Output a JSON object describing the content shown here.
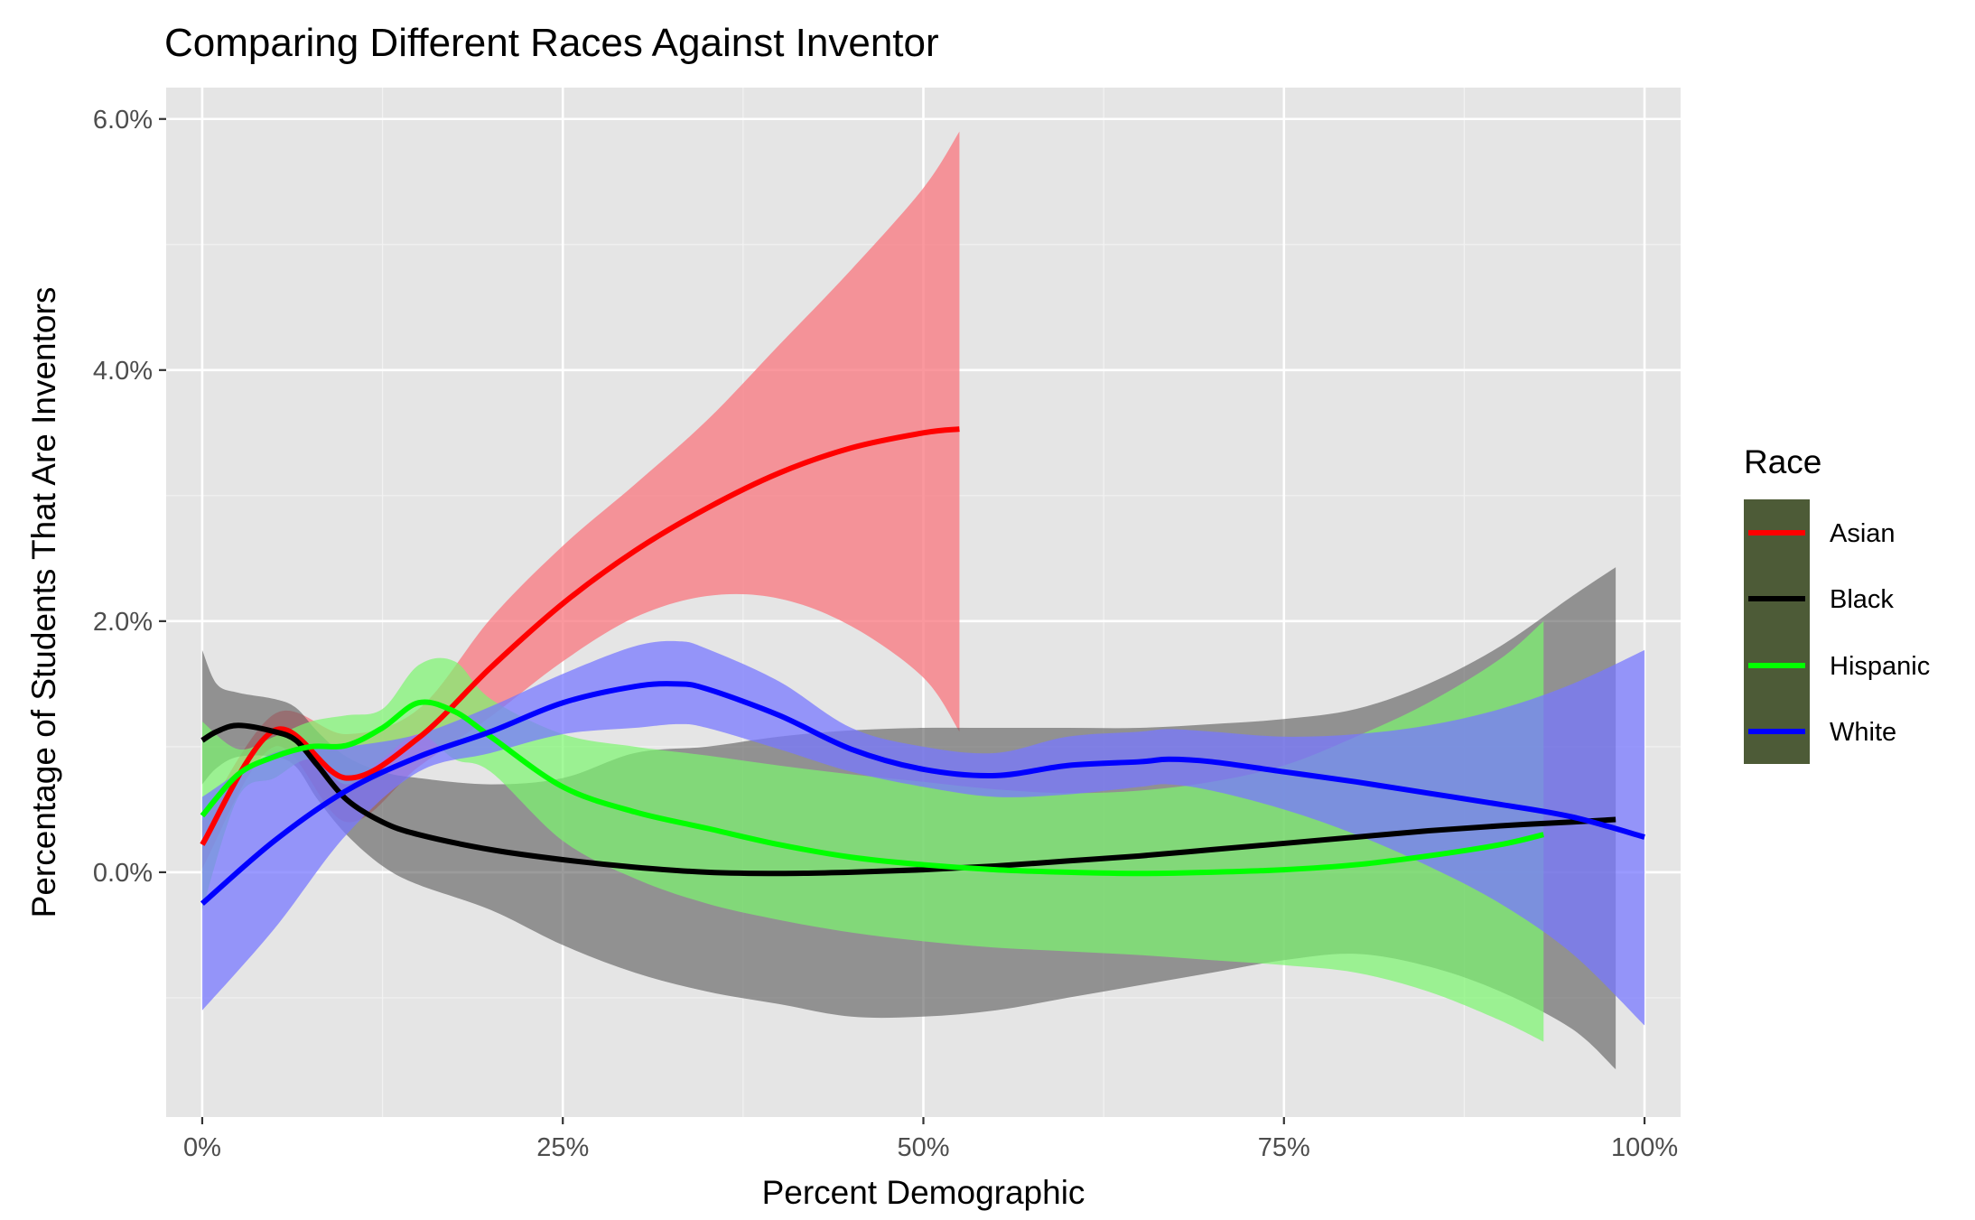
{
  "chart_data": {
    "type": "line",
    "title": "Comparing Different Races Against Inventor",
    "xlabel": "Percent Demographic",
    "ylabel": "Percentage of Students That Are Inventors",
    "xlim": [
      -0.025,
      1.025
    ],
    "ylim": [
      -0.0195,
      0.0625
    ],
    "x_ticks": [
      {
        "value": 0,
        "label": "0%"
      },
      {
        "value": 0.25,
        "label": "25%"
      },
      {
        "value": 0.5,
        "label": "50%"
      },
      {
        "value": 0.75,
        "label": "75%"
      },
      {
        "value": 1.0,
        "label": "100%"
      }
    ],
    "y_ticks": [
      {
        "value": 0.0,
        "label": "0.0%"
      },
      {
        "value": 0.02,
        "label": "2.0%"
      },
      {
        "value": 0.04,
        "label": "4.0%"
      },
      {
        "value": 0.06,
        "label": "6.0%"
      }
    ],
    "grid": true,
    "legend": {
      "title": "Race",
      "position": "right",
      "background": "#4d5b37"
    },
    "series": [
      {
        "name": "Asian",
        "color": "#ff0000",
        "ribbon_color": "#f8767d",
        "ribbon_opacity": 0.75,
        "x": [
          0.0,
          0.05,
          0.1,
          0.15,
          0.2,
          0.25,
          0.3,
          0.35,
          0.4,
          0.45,
          0.5,
          0.525
        ],
        "y": [
          0.0022,
          0.0113,
          0.0075,
          0.0107,
          0.0163,
          0.0214,
          0.0256,
          0.029,
          0.0318,
          0.0338,
          0.035,
          0.0353
        ],
        "lower": [
          0.0003,
          0.01,
          0.004,
          0.0084,
          0.0124,
          0.0168,
          0.0203,
          0.022,
          0.0218,
          0.0196,
          0.0155,
          0.0112
        ],
        "upper": [
          0.0041,
          0.0126,
          0.011,
          0.013,
          0.0202,
          0.026,
          0.0309,
          0.036,
          0.042,
          0.048,
          0.0545,
          0.059
        ]
      },
      {
        "name": "Black",
        "color": "#000000",
        "ribbon_color": "#595959",
        "ribbon_opacity": 0.6,
        "x": [
          0.0,
          0.01,
          0.025,
          0.05,
          0.065,
          0.08,
          0.1,
          0.125,
          0.15,
          0.2,
          0.25,
          0.3,
          0.35,
          0.4,
          0.45,
          0.5,
          0.55,
          0.6,
          0.65,
          0.7,
          0.75,
          0.8,
          0.85,
          0.9,
          0.95,
          0.98
        ],
        "y": [
          0.0105,
          0.0112,
          0.0117,
          0.0112,
          0.0105,
          0.0085,
          0.0058,
          0.004,
          0.003,
          0.0018,
          0.001,
          0.0004,
          0.0,
          -0.0001,
          0.0,
          0.0002,
          0.0005,
          0.0009,
          0.0013,
          0.0018,
          0.0023,
          0.0028,
          0.0033,
          0.0037,
          0.004,
          0.0042
        ],
        "lower": [
          0.007,
          0.0083,
          0.0092,
          0.0092,
          0.0084,
          0.0058,
          0.003,
          0.0005,
          -0.001,
          -0.003,
          -0.0058,
          -0.008,
          -0.0095,
          -0.0105,
          -0.0115,
          -0.0115,
          -0.011,
          -0.01,
          -0.009,
          -0.008,
          -0.007,
          -0.0065,
          -0.0075,
          -0.0095,
          -0.0125,
          -0.0157
        ],
        "upper": [
          0.0177,
          0.015,
          0.0143,
          0.0138,
          0.0131,
          0.0112,
          0.0092,
          0.008,
          0.0075,
          0.007,
          0.0075,
          0.0095,
          0.01,
          0.0108,
          0.0113,
          0.0115,
          0.0115,
          0.0115,
          0.0115,
          0.0118,
          0.0122,
          0.013,
          0.015,
          0.018,
          0.022,
          0.0243
        ]
      },
      {
        "name": "Hispanic",
        "color": "#00ff00",
        "ribbon_color": "#7cf76f",
        "ribbon_opacity": 0.7,
        "x": [
          0.0,
          0.025,
          0.05,
          0.075,
          0.1,
          0.125,
          0.15,
          0.175,
          0.2,
          0.25,
          0.3,
          0.35,
          0.4,
          0.45,
          0.5,
          0.55,
          0.6,
          0.65,
          0.7,
          0.75,
          0.8,
          0.85,
          0.9,
          0.93
        ],
        "y": [
          0.0045,
          0.0078,
          0.0092,
          0.01,
          0.0101,
          0.0115,
          0.0135,
          0.0128,
          0.0108,
          0.0068,
          0.0048,
          0.0035,
          0.0022,
          0.0012,
          0.0006,
          0.0002,
          0.0,
          -0.0001,
          0.0,
          0.0002,
          0.0006,
          0.0013,
          0.0022,
          0.003
        ],
        "lower": [
          -0.003,
          0.006,
          0.0075,
          0.009,
          0.007,
          0.009,
          0.011,
          0.009,
          0.008,
          0.0025,
          -0.0005,
          -0.0025,
          -0.0038,
          -0.0048,
          -0.0055,
          -0.006,
          -0.0063,
          -0.0066,
          -0.007,
          -0.0074,
          -0.008,
          -0.0095,
          -0.0118,
          -0.0135
        ],
        "upper": [
          0.012,
          0.0098,
          0.0108,
          0.012,
          0.0125,
          0.013,
          0.0165,
          0.0168,
          0.0138,
          0.011,
          0.01,
          0.0093,
          0.0085,
          0.0078,
          0.0072,
          0.0066,
          0.0063,
          0.0065,
          0.0072,
          0.0085,
          0.0108,
          0.0135,
          0.017,
          0.02
        ]
      },
      {
        "name": "White",
        "color": "#0000ff",
        "ribbon_color": "#7878ff",
        "ribbon_opacity": 0.75,
        "x": [
          0.0,
          0.05,
          0.1,
          0.15,
          0.2,
          0.25,
          0.3,
          0.33,
          0.35,
          0.4,
          0.45,
          0.5,
          0.55,
          0.6,
          0.65,
          0.67,
          0.7,
          0.75,
          0.8,
          0.85,
          0.9,
          0.95,
          1.0
        ],
        "y": [
          -0.0025,
          0.0025,
          0.0065,
          0.0092,
          0.0112,
          0.0135,
          0.0148,
          0.015,
          0.0146,
          0.0125,
          0.0098,
          0.0082,
          0.0077,
          0.0085,
          0.0088,
          0.009,
          0.0088,
          0.008,
          0.0072,
          0.0063,
          0.0054,
          0.0044,
          0.0028
        ],
        "lower": [
          -0.011,
          -0.0045,
          0.003,
          0.008,
          0.0095,
          0.011,
          0.0115,
          0.0118,
          0.0115,
          0.0098,
          0.008,
          0.0068,
          0.006,
          0.0062,
          0.0068,
          0.007,
          0.0065,
          0.005,
          0.003,
          0.0005,
          -0.0025,
          -0.0065,
          -0.0122
        ],
        "upper": [
          0.006,
          0.0095,
          0.01,
          0.011,
          0.0132,
          0.0158,
          0.018,
          0.0184,
          0.0178,
          0.0152,
          0.0115,
          0.01,
          0.0095,
          0.0108,
          0.0112,
          0.0114,
          0.0112,
          0.0108,
          0.011,
          0.0117,
          0.013,
          0.015,
          0.0177
        ]
      }
    ]
  }
}
